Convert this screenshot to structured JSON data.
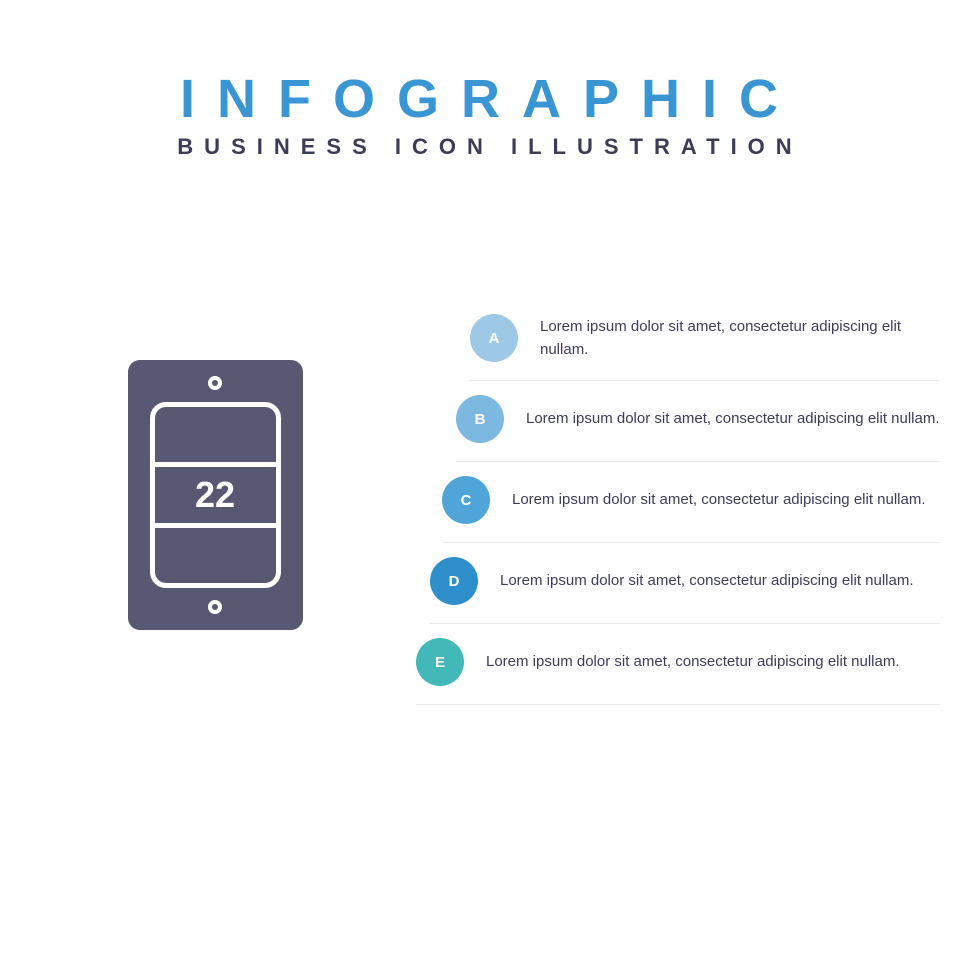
{
  "header": {
    "title": "INFOGRAPHIC",
    "subtitle": "BUSINESS ICON ILLUSTRATION",
    "title_color": "#3a96d2",
    "subtitle_color": "#3d3c56"
  },
  "icon": {
    "background_color": "#595872",
    "number": "22",
    "number_color": "#ffffff",
    "stroke_color": "#ffffff"
  },
  "items": [
    {
      "label": "A",
      "circle_color": "#9ec9e6",
      "text": "Lorem ipsum dolor sit amet, consectetur adipiscing elit nullam."
    },
    {
      "label": "B",
      "circle_color": "#7cb8df",
      "text": "Lorem ipsum dolor sit amet, consectetur adipiscing elit nullam."
    },
    {
      "label": "C",
      "circle_color": "#4fa5d7",
      "text": "Lorem ipsum dolor sit amet, consectetur adipiscing elit nullam."
    },
    {
      "label": "D",
      "circle_color": "#2f8fcb",
      "text": "Lorem ipsum dolor sit amet, consectetur adipiscing elit nullam."
    },
    {
      "label": "E",
      "circle_color": "#42b8b8",
      "text": "Lorem ipsum dolor sit amet, consectetur adipiscing elit nullam."
    }
  ],
  "styles": {
    "text_color": "#3d3c56",
    "divider_color": "#eaeaec",
    "background_color": "#ffffff"
  }
}
